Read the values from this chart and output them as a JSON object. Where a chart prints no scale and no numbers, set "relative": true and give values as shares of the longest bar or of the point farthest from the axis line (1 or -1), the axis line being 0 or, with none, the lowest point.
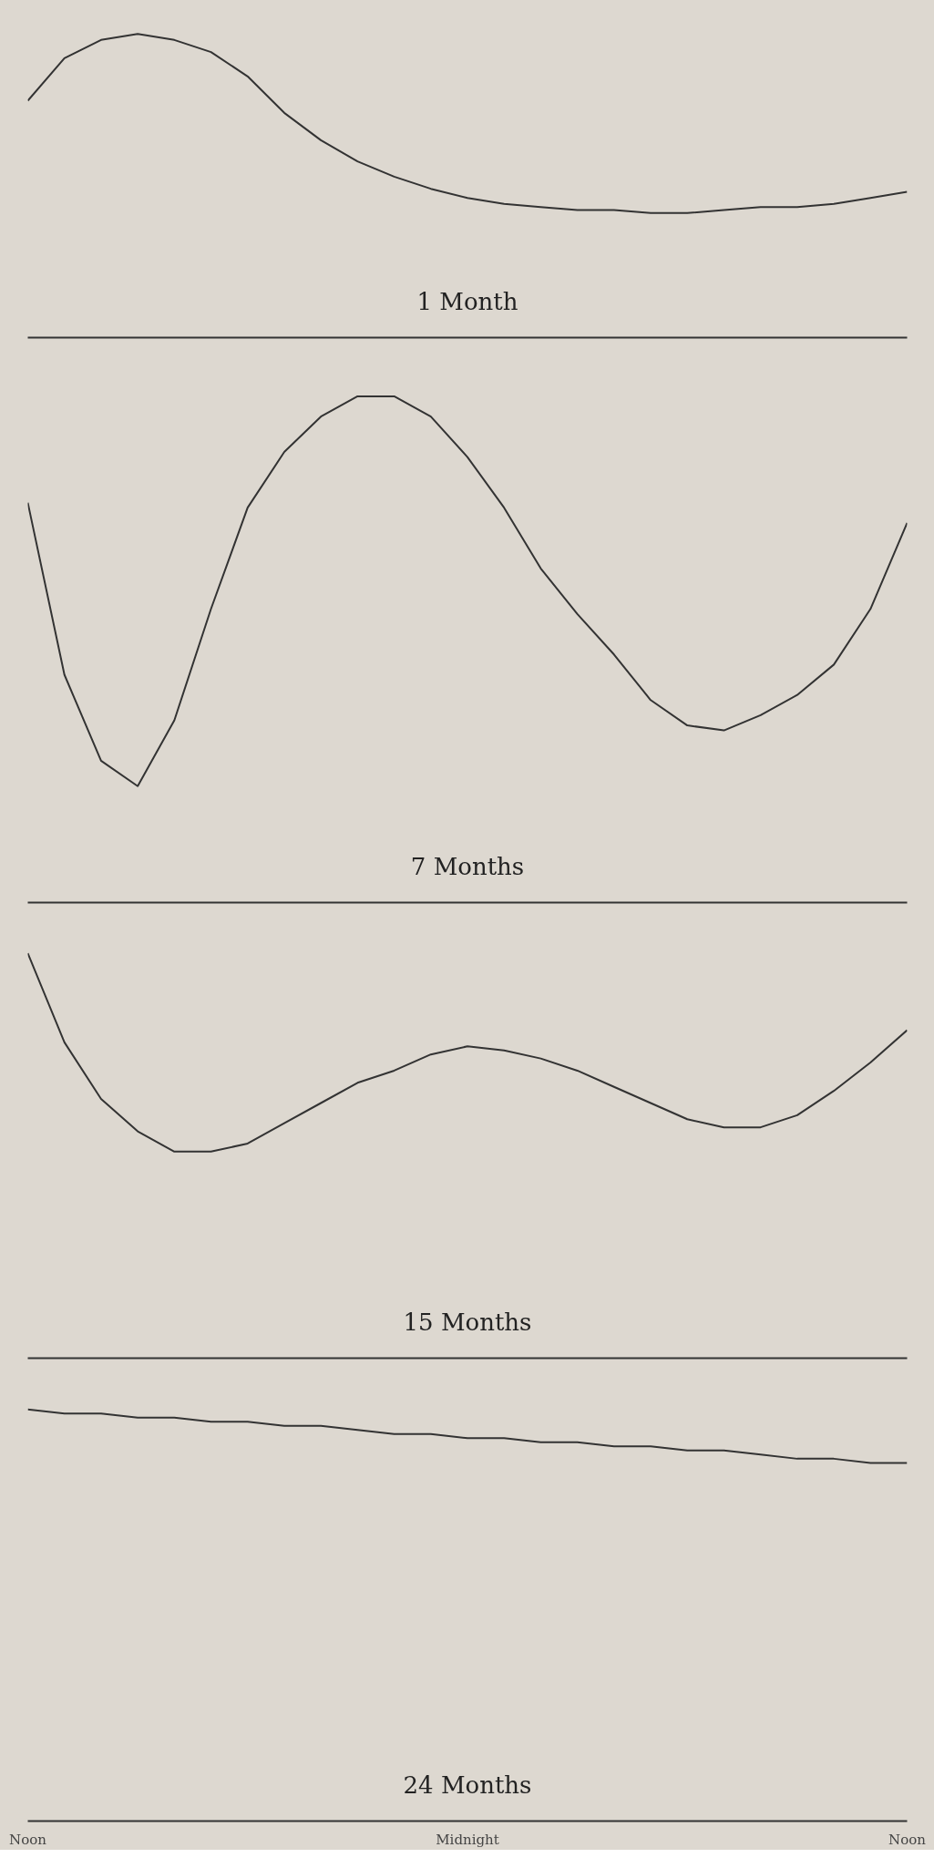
{
  "chart_data": [
    {
      "type": "line",
      "title": "1 Month",
      "relative": true,
      "line_style": "solid",
      "categories": [
        null,
        null,
        null,
        null,
        null,
        null,
        null,
        null,
        null,
        null,
        null,
        null,
        null,
        null,
        null,
        null,
        null,
        null,
        null,
        null,
        null,
        null,
        null,
        null,
        null
      ],
      "series": [
        {
          "color": "#333333",
          "values": [
            0.78,
            0.92,
            0.98,
            1,
            0.98,
            0.94,
            0.86,
            0.74,
            0.65,
            0.58,
            0.53,
            0.49,
            0.46,
            0.44,
            0.43,
            0.42,
            0.42,
            0.41,
            0.41,
            0.42,
            0.43,
            0.43,
            0.44,
            0.46,
            0.48
          ]
        }
      ]
    },
    {
      "type": "line",
      "title": "7 Months",
      "relative": true,
      "line_style": "solid",
      "categories": [
        null,
        null,
        null,
        null,
        null,
        null,
        null,
        null,
        null,
        null,
        null,
        null,
        null,
        null,
        null,
        null,
        null,
        null,
        null,
        null,
        null,
        null,
        null,
        null,
        null
      ],
      "series": [
        {
          "color": "#333333",
          "values": [
            0.79,
            0.45,
            0.28,
            0.23,
            0.36,
            0.58,
            0.78,
            0.89,
            0.96,
            1,
            1,
            0.96,
            0.88,
            0.78,
            0.66,
            0.57,
            0.49,
            0.4,
            0.35,
            0.34,
            0.37,
            0.41,
            0.47,
            0.58,
            0.75
          ]
        }
      ]
    },
    {
      "type": "line",
      "title": "15 Months",
      "relative": true,
      "line_style": "solid",
      "categories": [
        null,
        null,
        null,
        null,
        null,
        null,
        null,
        null,
        null,
        null,
        null,
        null,
        null,
        null,
        null,
        null,
        null,
        null,
        null,
        null,
        null,
        null,
        null,
        null,
        null
      ],
      "series": [
        {
          "color": "#333333",
          "values": [
            1,
            0.78,
            0.64,
            0.56,
            0.51,
            0.51,
            0.53,
            0.58,
            0.63,
            0.68,
            0.71,
            0.75,
            0.77,
            0.76,
            0.74,
            0.71,
            0.67,
            0.63,
            0.59,
            0.57,
            0.57,
            0.6,
            0.66,
            0.73,
            0.81
          ]
        }
      ]
    },
    {
      "type": "line",
      "title": "24 Months",
      "relative": true,
      "tick_labels": "x",
      "line_style": "solid",
      "categories": [
        "Noon",
        null,
        null,
        null,
        null,
        null,
        null,
        null,
        null,
        null,
        null,
        null,
        "Midnight",
        null,
        null,
        null,
        null,
        null,
        null,
        null,
        null,
        null,
        null,
        null,
        "Noon"
      ],
      "series": [
        {
          "color": "#333333",
          "values": [
            1,
            0.99,
            0.99,
            0.98,
            0.98,
            0.97,
            0.97,
            0.96,
            0.96,
            0.95,
            0.94,
            0.94,
            0.93,
            0.93,
            0.92,
            0.92,
            0.91,
            0.91,
            0.9,
            0.9,
            0.89,
            0.88,
            0.88,
            0.87,
            0.87
          ]
        }
      ]
    }
  ]
}
